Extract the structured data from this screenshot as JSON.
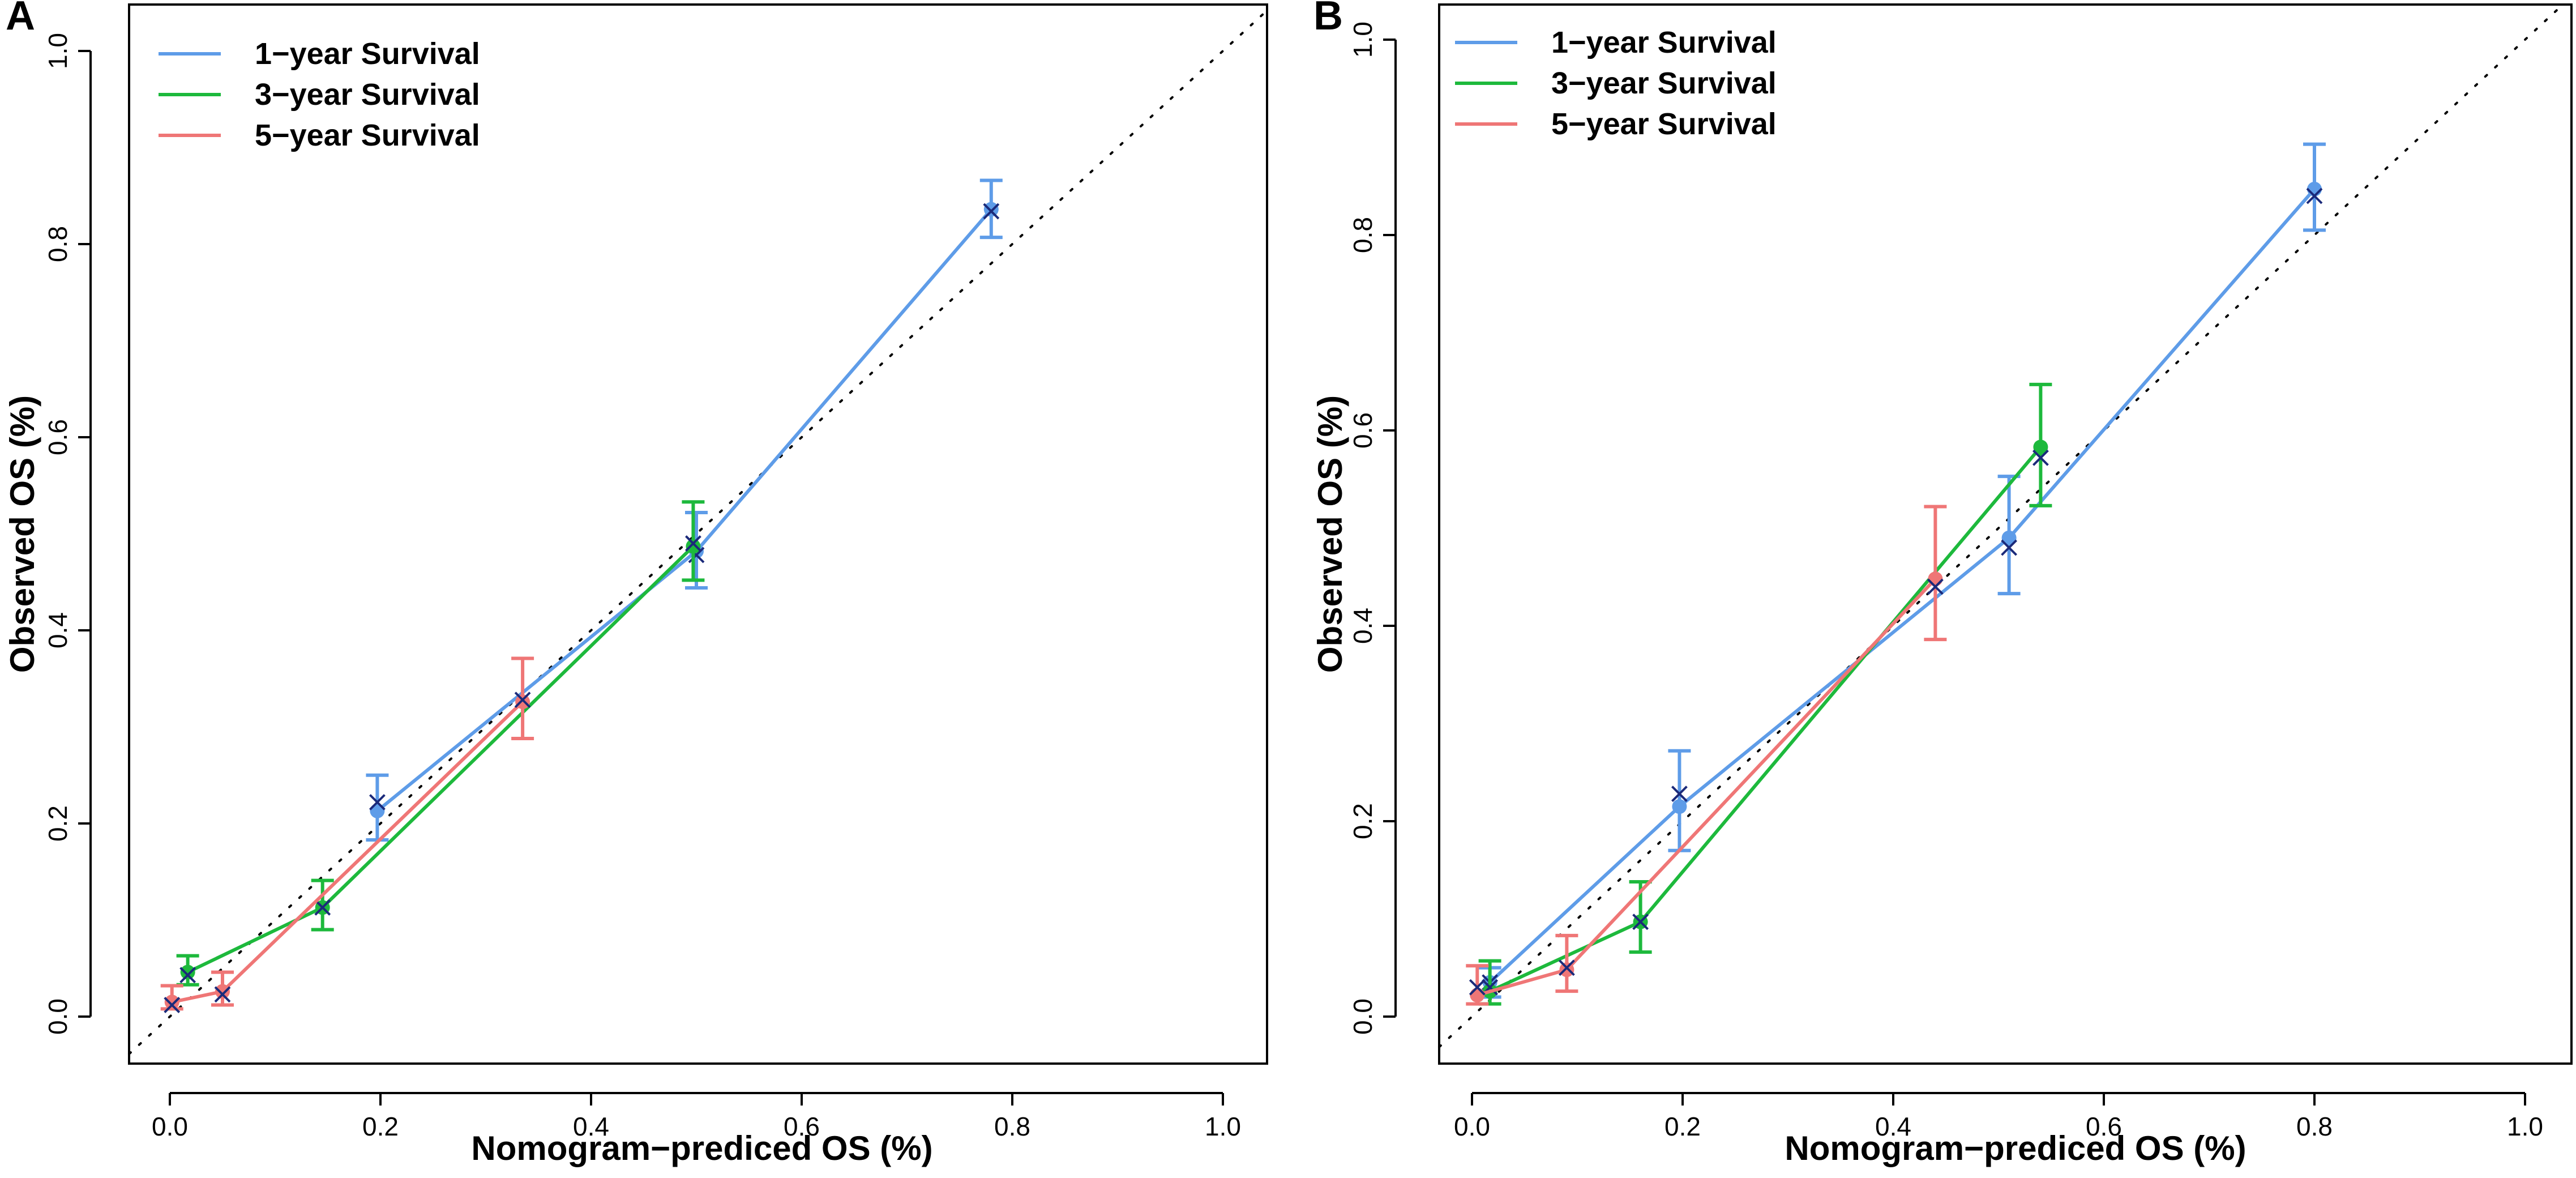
{
  "colors": {
    "1-year": "#5e9ce8",
    "3-year": "#1db93c",
    "5-year": "#ef7676",
    "cross": "#1b2a7a"
  },
  "chart_data": [
    {
      "panel_label": "A",
      "type": "line",
      "xlabel": "Nomogram−prediced OS (%)",
      "ylabel": "Observed OS (%)",
      "xlim": [
        0.0,
        1.0
      ],
      "ylim": [
        0.0,
        1.0
      ],
      "xticks": [
        "0.0",
        "0.2",
        "0.4",
        "0.6",
        "0.8",
        "1.0"
      ],
      "yticks": [
        "0.0",
        "0.2",
        "0.4",
        "0.6",
        "0.8",
        "1.0"
      ],
      "legend_position": "top-left",
      "series": [
        {
          "name": "1−year Survival",
          "key": "1-year",
          "x": [
            0.197,
            0.5,
            0.78
          ],
          "y": [
            0.213,
            0.482,
            0.836
          ],
          "x_cross": [
            0.197,
            0.5,
            0.78
          ],
          "y_cross": [
            0.222,
            0.478,
            0.834
          ],
          "err_low": [
            0.183,
            0.444,
            0.807
          ],
          "err_high": [
            0.25,
            0.522,
            0.866
          ]
        },
        {
          "name": "3−year Survival",
          "key": "3-year",
          "x": [
            0.017,
            0.145,
            0.497
          ],
          "y": [
            0.046,
            0.113,
            0.487
          ],
          "x_cross": [
            0.017,
            0.145,
            0.497
          ],
          "y_cross": [
            0.043,
            0.113,
            0.49
          ],
          "err_low": [
            0.033,
            0.09,
            0.452
          ],
          "err_high": [
            0.063,
            0.141,
            0.533
          ]
        },
        {
          "name": "5−year Survival",
          "key": "5-year",
          "x": [
            0.002,
            0.05,
            0.335
          ],
          "y": [
            0.015,
            0.026,
            0.326
          ],
          "x_cross": [
            0.002,
            0.05,
            0.335
          ],
          "y_cross": [
            0.012,
            0.023,
            0.328
          ],
          "err_low": [
            0.008,
            0.012,
            0.288
          ],
          "err_high": [
            0.032,
            0.046,
            0.371
          ]
        }
      ]
    },
    {
      "panel_label": "B",
      "type": "line",
      "xlabel": "Nomogram−prediced OS (%)",
      "ylabel": "Observed OS (%)",
      "xlim": [
        0.0,
        1.0
      ],
      "ylim": [
        0.0,
        1.0
      ],
      "xticks": [
        "0.0",
        "0.2",
        "0.4",
        "0.6",
        "0.8",
        "1.0"
      ],
      "yticks": [
        "0.0",
        "0.2",
        "0.4",
        "0.6",
        "0.8",
        "1.0"
      ],
      "legend_position": "top-left",
      "series": [
        {
          "name": "1−year Survival",
          "key": "1-year",
          "x": [
            0.017,
            0.197,
            0.51,
            0.8
          ],
          "y": [
            0.035,
            0.215,
            0.49,
            0.847
          ],
          "x_cross": [
            0.017,
            0.197,
            0.51,
            0.8
          ],
          "y_cross": [
            0.035,
            0.228,
            0.48,
            0.84
          ],
          "err_low": [
            0.02,
            0.17,
            0.433,
            0.805
          ],
          "err_high": [
            0.05,
            0.272,
            0.553,
            0.893
          ]
        },
        {
          "name": "3−year Survival",
          "key": "3-year",
          "x": [
            0.017,
            0.16,
            0.54
          ],
          "y": [
            0.026,
            0.097,
            0.583
          ],
          "x_cross": [
            0.017,
            0.16,
            0.54
          ],
          "y_cross": [
            0.03,
            0.097,
            0.572
          ],
          "err_low": [
            0.013,
            0.066,
            0.523
          ],
          "err_high": [
            0.057,
            0.138,
            0.647
          ]
        },
        {
          "name": "5−year Survival",
          "key": "5-year",
          "x": [
            0.005,
            0.09,
            0.44
          ],
          "y": [
            0.022,
            0.048,
            0.448
          ],
          "x_cross": [
            0.005,
            0.09,
            0.44
          ],
          "y_cross": [
            0.03,
            0.05,
            0.44
          ],
          "err_low": [
            0.013,
            0.026,
            0.386
          ],
          "err_high": [
            0.052,
            0.083,
            0.522
          ]
        }
      ]
    }
  ]
}
